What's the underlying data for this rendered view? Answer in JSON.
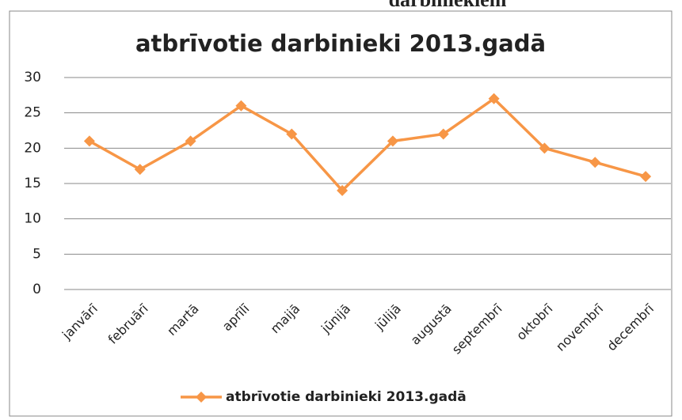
{
  "caption": "darbiniekiem",
  "chart_data": {
    "type": "line",
    "title": "atbrīvotie darbinieki 2013.gadā",
    "categories": [
      "janvārī",
      "februārī",
      "martā",
      "aprīlī",
      "maijā",
      "jūnijā",
      "jūlijā",
      "augustā",
      "septembrī",
      "oktobrī",
      "novembrī",
      "decembrī"
    ],
    "series": [
      {
        "name": "atbrīvotie darbinieki 2013.gadā",
        "color": "#f79646",
        "values": [
          21,
          17,
          21,
          26,
          22,
          14,
          21,
          22,
          27,
          20,
          18,
          16
        ]
      }
    ],
    "ylim": [
      0,
      30
    ],
    "yticks": [
      0,
      5,
      10,
      15,
      20,
      25,
      30
    ],
    "grid": true,
    "legend": "bottom"
  }
}
